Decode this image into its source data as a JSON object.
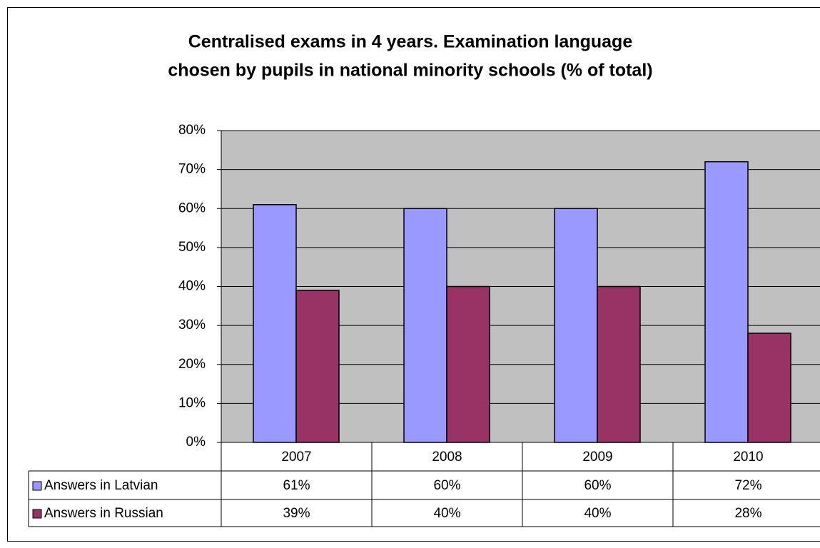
{
  "chart_data": {
    "type": "bar",
    "title": [
      "Centralised exams in 4 years. Examination language",
      "chosen by pupils in national minority schools (% of total)"
    ],
    "categories": [
      "2007",
      "2008",
      "2009",
      "2010"
    ],
    "series": [
      {
        "name": "Answers in Latvian",
        "color": "#9999ff",
        "values": [
          61,
          60,
          60,
          72
        ],
        "value_labels": [
          "61%",
          "60%",
          "60%",
          "72%"
        ]
      },
      {
        "name": "Answers in Russian",
        "color": "#993366",
        "values": [
          39,
          40,
          40,
          28
        ],
        "value_labels": [
          "39%",
          "40%",
          "40%",
          "28%"
        ]
      }
    ],
    "ylim": [
      0,
      80
    ],
    "yticks": [
      {
        "value": 0,
        "label": "0%"
      },
      {
        "value": 10,
        "label": "10%"
      },
      {
        "value": 20,
        "label": "20%"
      },
      {
        "value": 30,
        "label": "30%"
      },
      {
        "value": 40,
        "label": "40%"
      },
      {
        "value": 50,
        "label": "50%"
      },
      {
        "value": 60,
        "label": "60%"
      },
      {
        "value": 70,
        "label": "70%"
      },
      {
        "value": 80,
        "label": "80%"
      }
    ],
    "grid": true,
    "plot_background": "#c0c0c0"
  }
}
